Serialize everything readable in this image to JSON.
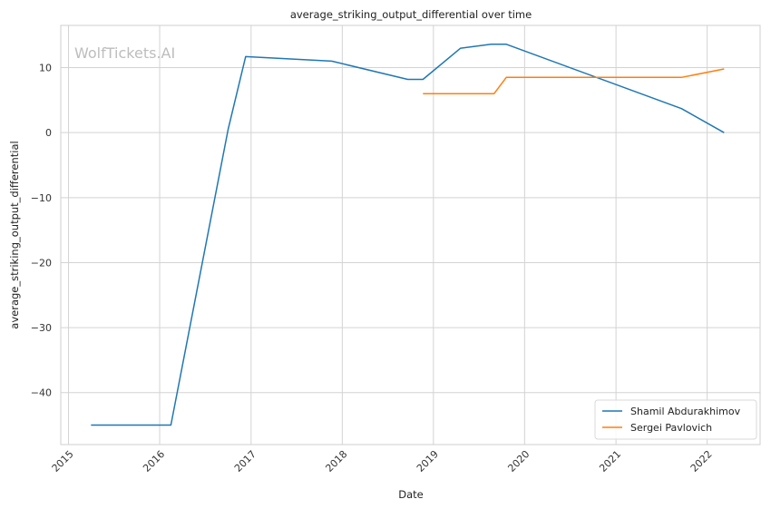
{
  "chart_data": {
    "type": "line",
    "title": "average_striking_output_differential over time",
    "xlabel": "Date",
    "ylabel": "average_striking_output_differential",
    "watermark": "WolfTickets.AI",
    "xlim": [
      "2014-12-01",
      "2022-08-01"
    ],
    "ylim": [
      -48,
      16.5
    ],
    "x_ticks": [
      "2015",
      "2016",
      "2017",
      "2018",
      "2019",
      "2020",
      "2021",
      "2022"
    ],
    "y_ticks": [
      10,
      0,
      -10,
      -20,
      -30,
      -40
    ],
    "y_tick_labels": [
      "10",
      "0",
      "−10",
      "−20",
      "−30",
      "−40"
    ],
    "grid": true,
    "legend_position": "bottom-right",
    "series": [
      {
        "name": "Shamil Abdurakhimov",
        "color": "#1f77b4",
        "points": [
          [
            "2015-04-01",
            -45
          ],
          [
            "2016-02-15",
            -45
          ],
          [
            "2016-10-01",
            0.5
          ],
          [
            "2016-12-10",
            11.7
          ],
          [
            "2017-11-20",
            11.0
          ],
          [
            "2018-09-20",
            8.2
          ],
          [
            "2018-11-20",
            8.2
          ],
          [
            "2019-04-20",
            13.0
          ],
          [
            "2019-08-20",
            13.6
          ],
          [
            "2019-10-20",
            13.6
          ],
          [
            "2021-09-20",
            3.7
          ],
          [
            "2022-03-10",
            0.0
          ]
        ]
      },
      {
        "name": "Sergei Pavlovich",
        "color": "#ff7f0e",
        "points": [
          [
            "2018-11-20",
            6.0
          ],
          [
            "2019-09-01",
            6.0
          ],
          [
            "2019-10-20",
            8.5
          ],
          [
            "2021-09-20",
            8.5
          ],
          [
            "2022-03-10",
            9.8
          ]
        ]
      }
    ]
  }
}
